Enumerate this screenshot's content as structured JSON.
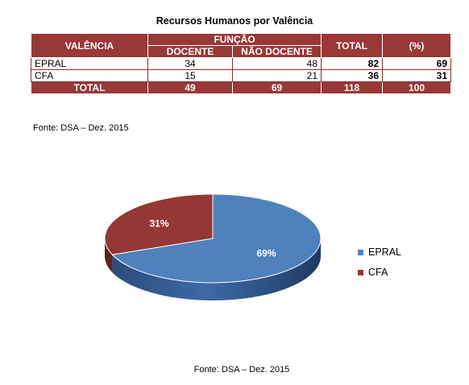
{
  "table": {
    "title": "Recursos  Humanos  por Valência",
    "headers": {
      "valencia": "VALÊNCIA",
      "funcao": "FUNÇÃO",
      "docente": "DOCENTE",
      "nao_docente": "NÃO DOCENTE",
      "total": "TOTAL",
      "pct": "(%)"
    },
    "rows": [
      {
        "valencia": "EPRAL",
        "docente": "34",
        "nao_docente": "48",
        "total": "82",
        "pct": "69"
      },
      {
        "valencia": "CFA",
        "docente": "15",
        "nao_docente": "21",
        "total": "36",
        "pct": "31"
      }
    ],
    "totals": {
      "label": "TOTAL",
      "docente": "49",
      "nao_docente": "69",
      "total": "118",
      "pct": "100"
    },
    "source": "Fonte: DSA – Dez. 2015"
  },
  "chart_data": {
    "type": "pie",
    "categories": [
      "EPRAL",
      "CFA"
    ],
    "values": [
      69,
      31
    ],
    "data_labels": [
      "69%",
      "31%"
    ],
    "colors": [
      "#4f81bd",
      "#953735"
    ],
    "legend_position": "right",
    "source": "Fonte: DSA – Dez. 2015"
  }
}
